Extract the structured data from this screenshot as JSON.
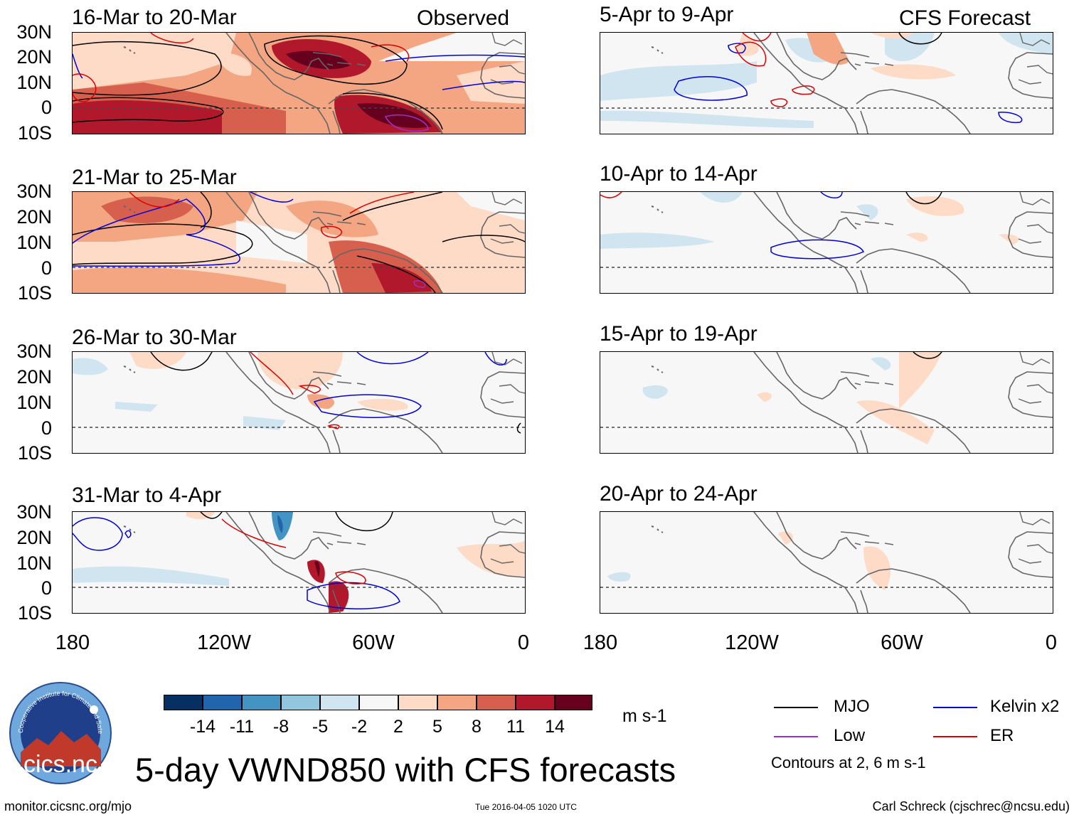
{
  "header": {
    "left_label": "Observed",
    "right_label": "CFS Forecast"
  },
  "panels": {
    "obs": [
      {
        "title": "16-Mar to 20-Mar"
      },
      {
        "title": "21-Mar to 25-Mar"
      },
      {
        "title": "26-Mar to 30-Mar"
      },
      {
        "title": "31-Mar to 4-Apr"
      }
    ],
    "fcst": [
      {
        "title": "5-Apr to 9-Apr"
      },
      {
        "title": "10-Apr to 14-Apr"
      },
      {
        "title": "15-Apr to 19-Apr"
      },
      {
        "title": "20-Apr to 24-Apr"
      }
    ]
  },
  "axes": {
    "lat_labels": [
      "30N",
      "20N",
      "10N",
      "0",
      "10S"
    ],
    "lon_labels": [
      "180",
      "120W",
      "60W",
      "0"
    ]
  },
  "colorbar": {
    "ticks": [
      "-14",
      "-11",
      "-8",
      "-5",
      "-2",
      "2",
      "5",
      "8",
      "11",
      "14"
    ],
    "colors": [
      "#053061",
      "#2166ac",
      "#4393c3",
      "#92c5de",
      "#d1e5f0",
      "#f7f7f7",
      "#fddbc7",
      "#f4a582",
      "#d6604d",
      "#b2182b",
      "#67001f"
    ],
    "units": "m s-1"
  },
  "legend": {
    "items": [
      {
        "label": "MJO",
        "color": "#000000"
      },
      {
        "label": "Kelvin x2",
        "color": "#0000dd"
      },
      {
        "label": "Low",
        "color": "#9932cc"
      },
      {
        "label": "ER",
        "color": "#dd0000"
      }
    ],
    "contours_note": "Contours at 2, 6 m s-1"
  },
  "title": "5-day VWND850 with CFS forecasts",
  "footer": {
    "left": "monitor.cicsnc.org/mjo",
    "center": "Tue 2016-04-05 1020 UTC",
    "right": "Carl Schreck (cjschrec@ncsu.edu)"
  },
  "logo": {
    "text": "cics.nc",
    "ring_text": "Cooperative Institute for Climate and Satellites"
  }
}
